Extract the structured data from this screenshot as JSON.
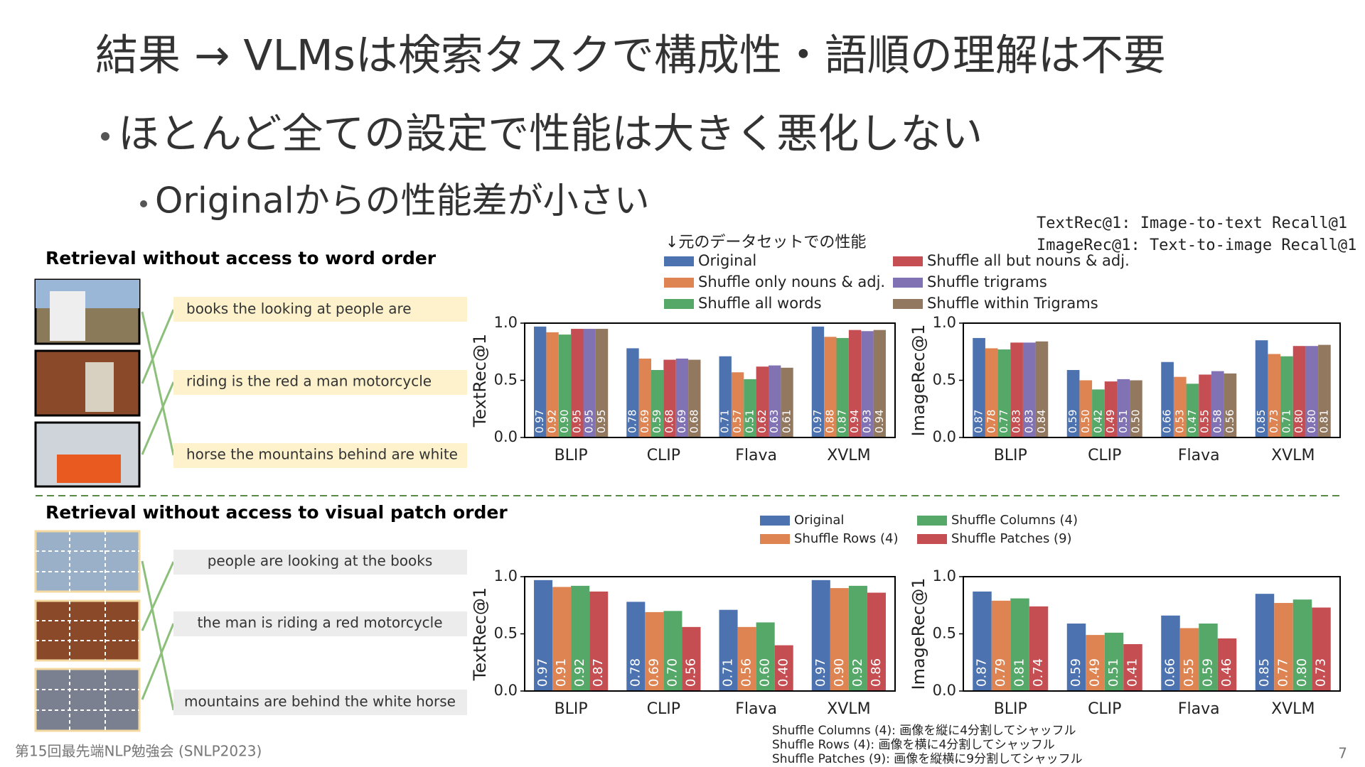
{
  "slide": {
    "title": "結果 → VLMsは検索タスクで構成性・語順の理解は不要",
    "bullet": "ほとんど全ての設定で性能は大きく悪化しない",
    "sub_bullet": "Originalからの性能差が小さい",
    "metric_notes": [
      "TextRec@1: Image-to-text Recall@1",
      "ImageRec@1: Text-to-image Recall@1"
    ],
    "baseline_note": "↓元のデータセットでの性能",
    "patch_notes": [
      "Shuffle Columns (4): 画像を縦に4分割してシャッフル",
      "Shuffle Rows (4): 画像を横に4分割してシャッフル",
      "Shuffle Patches (9): 画像を縦横に9分割してシャッフル"
    ],
    "footer": "第15回最先端NLP勉強会 (SNLP2023)",
    "page_number": 7
  },
  "word_order": {
    "heading": "Retrieval without access to word order",
    "captions": [
      "books the looking at people are",
      "riding is the red a man motorcycle",
      "horse the mountains behind are white"
    ]
  },
  "patch_order": {
    "heading": "Retrieval without access to visual patch order",
    "captions": [
      "people are looking at the books",
      "the man is riding a red motorcycle",
      "mountains are behind the white horse"
    ]
  },
  "chart_data": [
    {
      "type": "bar",
      "ylabel": "TextRec@1",
      "categories": [
        "BLIP",
        "CLIP",
        "Flava",
        "XVLM"
      ],
      "ylim": [
        0,
        1
      ],
      "yticks": [
        {
          "value": 0,
          "label": "0.0"
        },
        {
          "value": 0.5,
          "label": "0.5"
        },
        {
          "value": 1,
          "label": "1.0"
        }
      ],
      "series": [
        {
          "name": "Original",
          "color": "#4c72b0",
          "values": [
            0.97,
            0.78,
            0.71,
            0.97
          ],
          "value_labels": [
            "0.97",
            "0.78",
            "0.71",
            "0.97"
          ]
        },
        {
          "name": "Shuffle only nouns & adj.",
          "color": "#dd8452",
          "values": [
            0.92,
            0.69,
            0.57,
            0.88
          ],
          "value_labels": [
            "0.92",
            "0.69",
            "0.57",
            "0.88"
          ]
        },
        {
          "name": "Shuffle all words",
          "color": "#55a868",
          "values": [
            0.9,
            0.59,
            0.51,
            0.87
          ],
          "value_labels": [
            "0.90",
            "0.59",
            "0.51",
            "0.87"
          ]
        },
        {
          "name": "Shuffle all but nouns & adj.",
          "color": "#c44e52",
          "values": [
            0.95,
            0.68,
            0.62,
            0.94
          ],
          "value_labels": [
            "0.95",
            "0.68",
            "0.62",
            "0.94"
          ]
        },
        {
          "name": "Shuffle trigrams",
          "color": "#8172b3",
          "values": [
            0.95,
            0.69,
            0.63,
            0.93
          ],
          "value_labels": [
            "0.95",
            "0.69",
            "0.63",
            "0.93"
          ]
        },
        {
          "name": "Shuffle within Trigrams",
          "color": "#937860",
          "values": [
            0.95,
            0.68,
            0.61,
            0.94
          ],
          "value_labels": [
            "0.95",
            "0.68",
            "0.61",
            "0.94"
          ]
        }
      ]
    },
    {
      "type": "bar",
      "ylabel": "ImageRec@1",
      "categories": [
        "BLIP",
        "CLIP",
        "Flava",
        "XVLM"
      ],
      "ylim": [
        0,
        1
      ],
      "yticks": [
        {
          "value": 0,
          "label": "0.0"
        },
        {
          "value": 0.5,
          "label": "0.5"
        },
        {
          "value": 1,
          "label": "1.0"
        }
      ],
      "series": [
        {
          "color": "#4c72b0",
          "values": [
            0.87,
            0.59,
            0.66,
            0.85
          ],
          "value_labels": [
            "0.87",
            "0.59",
            "0.66",
            "0.85"
          ]
        },
        {
          "color": "#dd8452",
          "values": [
            0.78,
            0.5,
            0.53,
            0.73
          ],
          "value_labels": [
            "0.78",
            "0.50",
            "0.53",
            "0.73"
          ]
        },
        {
          "color": "#55a868",
          "values": [
            0.77,
            0.42,
            0.47,
            0.71
          ],
          "value_labels": [
            "0.77",
            "0.42",
            "0.47",
            "0.71"
          ]
        },
        {
          "color": "#c44e52",
          "values": [
            0.83,
            0.49,
            0.55,
            0.8
          ],
          "value_labels": [
            "0.83",
            "0.49",
            "0.55",
            "0.80"
          ]
        },
        {
          "color": "#8172b3",
          "values": [
            0.83,
            0.51,
            0.58,
            0.8
          ],
          "value_labels": [
            "0.83",
            "0.51",
            "0.58",
            "0.80"
          ]
        },
        {
          "color": "#937860",
          "values": [
            0.84,
            0.5,
            0.56,
            0.81
          ],
          "value_labels": [
            "0.84",
            "0.50",
            "0.56",
            "0.81"
          ]
        }
      ]
    },
    {
      "type": "bar",
      "ylabel": "TextRec@1",
      "categories": [
        "BLIP",
        "CLIP",
        "Flava",
        "XVLM"
      ],
      "ylim": [
        0,
        1
      ],
      "yticks": [
        {
          "value": 0,
          "label": "0.0"
        },
        {
          "value": 0.5,
          "label": "0.5"
        },
        {
          "value": 1,
          "label": "1.0"
        }
      ],
      "series": [
        {
          "name": "Original",
          "color": "#4c72b0",
          "values": [
            0.97,
            0.78,
            0.71,
            0.97
          ],
          "value_labels": [
            "0.97",
            "0.78",
            "0.71",
            "0.97"
          ]
        },
        {
          "name": "Shuffle Rows (4)",
          "color": "#dd8452",
          "values": [
            0.91,
            0.69,
            0.56,
            0.9
          ],
          "value_labels": [
            "0.91",
            "0.69",
            "0.56",
            "0.90"
          ]
        },
        {
          "name": "Shuffle Columns (4)",
          "color": "#55a868",
          "values": [
            0.92,
            0.7,
            0.6,
            0.92
          ],
          "value_labels": [
            "0.92",
            "0.70",
            "0.60",
            "0.92"
          ]
        },
        {
          "name": "Shuffle Patches (9)",
          "color": "#c44e52",
          "values": [
            0.87,
            0.56,
            0.4,
            0.86
          ],
          "value_labels": [
            "0.87",
            "0.56",
            "0.40",
            "0.86"
          ]
        }
      ]
    },
    {
      "type": "bar",
      "ylabel": "ImageRec@1",
      "categories": [
        "BLIP",
        "CLIP",
        "Flava",
        "XVLM"
      ],
      "ylim": [
        0,
        1
      ],
      "yticks": [
        {
          "value": 0,
          "label": "0.0"
        },
        {
          "value": 0.5,
          "label": "0.5"
        },
        {
          "value": 1,
          "label": "1.0"
        }
      ],
      "series": [
        {
          "color": "#4c72b0",
          "values": [
            0.87,
            0.59,
            0.66,
            0.85
          ],
          "value_labels": [
            "0.87",
            "0.59",
            "0.66",
            "0.85"
          ]
        },
        {
          "color": "#dd8452",
          "values": [
            0.79,
            0.49,
            0.55,
            0.77
          ],
          "value_labels": [
            "0.79",
            "0.49",
            "0.55",
            "0.77"
          ]
        },
        {
          "color": "#55a868",
          "values": [
            0.81,
            0.51,
            0.59,
            0.8
          ],
          "value_labels": [
            "0.81",
            "0.51",
            "0.59",
            "0.80"
          ]
        },
        {
          "color": "#c44e52",
          "values": [
            0.74,
            0.41,
            0.46,
            0.73
          ],
          "value_labels": [
            "0.74",
            "0.41",
            "0.46",
            "0.73"
          ]
        }
      ]
    }
  ]
}
